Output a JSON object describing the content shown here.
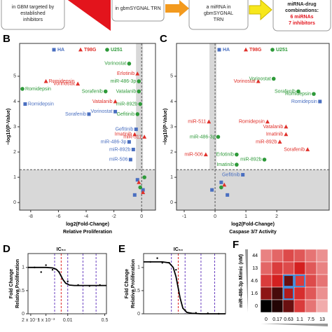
{
  "flow": {
    "boxes": [
      {
        "lines": [
          "in GBM targeted by",
          "established",
          "inhibitors"
        ]
      },
      {
        "lines": [
          "in gbmSYGNAL TRN"
        ]
      },
      {
        "lines": [
          "a miRNA in",
          "gbmSYGNAL",
          "TRN"
        ]
      },
      {
        "lines": [
          "miRNA-drug",
          "combinations:",
          "6 miRNAs",
          "7 inhibitors"
        ]
      }
    ]
  },
  "chart_data": [
    {
      "panel": "B",
      "type": "scatter",
      "xlabel": "log2(Fold-Change)",
      "xlabel2": "Relative Proliferation",
      "ylabel": "−log10(P-Value)",
      "xlim": [
        -8.8,
        1.0
      ],
      "ylim": [
        -0.3,
        6.3
      ],
      "xticks": [
        -8,
        -6,
        -4,
        -2,
        0
      ],
      "yticks": [
        0,
        1,
        2,
        3,
        4,
        5
      ],
      "hline": 1.3,
      "vline": 0,
      "legend": "top",
      "series": [
        {
          "name": "HA",
          "color": "#4a6fc0",
          "marker": "square",
          "x": [
            -8.4,
            -3.8,
            -1.9,
            -0.4,
            -0.9,
            -0.6,
            -0.8,
            -0.3,
            0.1,
            -0.5
          ],
          "values": [
            3.9,
            3.5,
            3.6,
            2.9,
            2.4,
            2.1,
            1.7,
            0.9,
            0.5,
            0.3
          ],
          "labels": [
            "Romidepsin",
            "Sorafenib",
            "Vorinostat",
            "Gefitinib",
            "miR-486-3p",
            "miR-892b",
            "miR-506",
            null,
            null,
            null
          ]
        },
        {
          "name": "T98G",
          "color": "#e0302a",
          "marker": "triangle",
          "x": [
            -6.9,
            -4.6,
            -0.3,
            -1.9,
            -0.5,
            0.2,
            -0.2,
            0.1
          ],
          "values": [
            4.8,
            4.7,
            5.1,
            4.0,
            2.7,
            2.6,
            0.8,
            0.4
          ],
          "labels": [
            "Romidepsin",
            "Vorinostat",
            "Erlotinib",
            "Vatalanib",
            "Imatinib",
            "miR-511",
            null,
            null
          ]
        },
        {
          "name": "U251",
          "color": "#2e9a3a",
          "marker": "circle",
          "x": [
            -0.9,
            -8.6,
            -2.6,
            -0.2,
            -0.2,
            -0.1,
            -0.3,
            0.2,
            -0.1
          ],
          "values": [
            5.5,
            4.5,
            4.4,
            4.8,
            4.4,
            3.9,
            3.5,
            1.0,
            0.6
          ],
          "labels": [
            "Vorinostat",
            "Romidepsin",
            "Sorafenib",
            "miR-486-3p",
            "Vatalanib",
            "miR-892b",
            "Gefitinib",
            null,
            null
          ]
        }
      ]
    },
    {
      "panel": "C",
      "type": "scatter",
      "xlabel": "log2(Fold-Change)",
      "xlabel2": "Caspase 3/7 Activity",
      "ylabel": "−log10(P-Value)",
      "xlim": [
        -1.25,
        3.7
      ],
      "ylim": [
        -0.3,
        6.3
      ],
      "xticks": [
        -1,
        0,
        1,
        2
      ],
      "yticks": [
        0,
        1,
        2,
        3,
        4,
        5
      ],
      "hline": 1.3,
      "vline": 0,
      "legend": "top",
      "series": [
        {
          "name": "HA",
          "color": "#4a6fc0",
          "marker": "square",
          "x": [
            3.4,
            0.9,
            0.2,
            -0.1,
            0.4
          ],
          "values": [
            4.0,
            1.1,
            0.8,
            0.5,
            0.3
          ],
          "labels": [
            "Romidepsin",
            "Gefitinib",
            null,
            null,
            null
          ]
        },
        {
          "name": "T98G",
          "color": "#e0302a",
          "marker": "triangle",
          "x": [
            1.4,
            -0.2,
            1.7,
            2.3,
            2.3,
            2.1,
            3.0,
            -0.3,
            0.3
          ],
          "values": [
            4.8,
            3.2,
            3.2,
            3.0,
            2.7,
            2.4,
            2.1,
            1.9,
            0.7
          ],
          "labels": [
            "Vorinostat",
            "miR-511",
            "Romidepsin",
            "Vatalanib",
            "Imatinib",
            "miR-892b",
            "Sorafenib",
            "miR-506",
            null
          ]
        },
        {
          "name": "U251",
          "color": "#2e9a3a",
          "marker": "circle",
          "x": [
            1.9,
            2.7,
            3.2,
            0.1,
            0.7,
            1.6,
            0.7,
            0.2
          ],
          "values": [
            4.9,
            4.4,
            4.3,
            2.6,
            1.9,
            1.7,
            1.5,
            0.6
          ],
          "labels": [
            "Vorinostat",
            "Sorafenib",
            "Romidepsin",
            "miR-486-3p",
            "Erlotinib",
            "miR-892b",
            "Imatinib",
            null
          ]
        }
      ]
    },
    {
      "panel": "D",
      "type": "dose",
      "ylabel": "Fold Change",
      "ylabel2": "Relative Proliferation",
      "annotation": "IC₅₀",
      "log_x": true,
      "xlim": [
        0.00015,
        0.6
      ],
      "ylim": [
        0,
        1.3
      ],
      "yticks": [
        0,
        0.5,
        1
      ],
      "xticks": [
        {
          "value": 0.0002,
          "label": "2 x 10⁻⁴"
        },
        {
          "value": 0.001,
          "label": "1 x 10⁻³"
        },
        {
          "value": 0.01,
          "label": "0.01"
        },
        {
          "value": 0.5,
          "label": "0.5"
        }
      ],
      "vlines": [
        {
          "value": 0.005,
          "color": "#d22"
        },
        {
          "value": 0.0025,
          "color": "#6a3fc0"
        },
        {
          "value": 0.01,
          "color": "#6a3fc0"
        },
        {
          "value": 0.05,
          "color": "#6a3fc0"
        },
        {
          "value": 0.2,
          "color": "#6a3fc0"
        }
      ],
      "series": [
        {
          "name": "points",
          "color": "#000",
          "x": [
            0.0003,
            0.0006,
            0.001,
            0.002,
            0.004,
            0.01,
            0.03,
            0.1,
            0.3
          ],
          "values": [
            1.0,
            0.9,
            1.05,
            0.95,
            0.9,
            0.7,
            0.62,
            0.6,
            0.62
          ]
        },
        {
          "name": "fit",
          "color": "#000",
          "x": [
            0.00015,
            0.0005,
            0.001,
            0.002,
            0.003,
            0.004,
            0.005,
            0.006,
            0.008,
            0.012,
            0.02,
            0.05,
            0.6
          ],
          "values": [
            1.0,
            1.0,
            1.0,
            0.99,
            0.96,
            0.9,
            0.81,
            0.74,
            0.66,
            0.62,
            0.61,
            0.61,
            0.61
          ]
        }
      ]
    },
    {
      "panel": "E",
      "type": "dose",
      "ylabel": "Fold Change",
      "ylabel2": "Relative Proliferation",
      "annotation": "IC₅₀",
      "log_x": true,
      "xlim": [
        0.00015,
        0.6
      ],
      "ylim": [
        0,
        1.3
      ],
      "yticks": [
        0,
        0.5,
        1
      ],
      "vlines": [
        {
          "value": 0.005,
          "color": "#d22"
        },
        {
          "value": 0.0025,
          "color": "#6a3fc0"
        },
        {
          "value": 0.01,
          "color": "#6a3fc0"
        },
        {
          "value": 0.05,
          "color": "#6a3fc0"
        },
        {
          "value": 0.2,
          "color": "#6a3fc0"
        }
      ],
      "series": [
        {
          "name": "points",
          "color": "#000",
          "x": [
            0.0003,
            0.0006,
            0.001,
            0.002,
            0.004,
            0.01,
            0.03,
            0.1,
            0.3
          ],
          "values": [
            1.12,
            1.2,
            1.1,
            1.1,
            0.95,
            0.08,
            0.02,
            0.01,
            0.0
          ]
        },
        {
          "name": "fit",
          "color": "#000",
          "x": [
            0.00015,
            0.0005,
            0.001,
            0.002,
            0.003,
            0.004,
            0.005,
            0.006,
            0.008,
            0.012,
            0.02,
            0.05,
            0.6
          ],
          "values": [
            1.12,
            1.12,
            1.12,
            1.1,
            1.0,
            0.8,
            0.55,
            0.35,
            0.12,
            0.03,
            0.01,
            0.0,
            0.0
          ]
        }
      ]
    },
    {
      "panel": "F",
      "type": "heatmap",
      "ylabel": "miR-486-3p Mimic (nM)",
      "rows": [
        "44",
        "13",
        "4.6",
        "1.6",
        "0"
      ],
      "cols": [
        "0",
        "0.17",
        "0.63",
        "1.1",
        "7.5",
        "13"
      ],
      "values": [
        [
          0.35,
          0.45,
          0.55,
          0.5,
          0.4,
          0.3
        ],
        [
          0.45,
          0.6,
          0.55,
          0.7,
          0.5,
          0.35
        ],
        [
          0.6,
          0.7,
          0.85,
          0.6,
          0.55,
          0.4
        ],
        [
          0.8,
          0.9,
          0.75,
          0.65,
          0.5,
          0.3
        ],
        [
          1.0,
          0.95,
          0.85,
          0.6,
          0.4,
          0.2
        ]
      ]
    }
  ]
}
